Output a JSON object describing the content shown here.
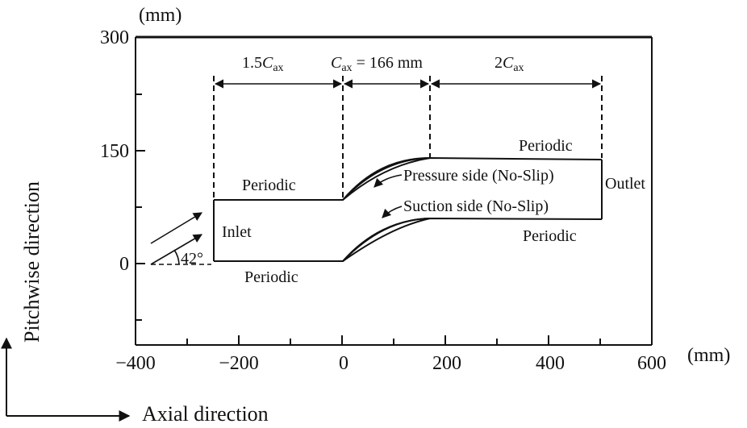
{
  "axes": {
    "x_unit": "(mm)",
    "y_unit": "(mm)",
    "x_ticks": [
      "−400",
      "−200",
      "0",
      "200",
      "400",
      "600"
    ],
    "y_ticks": [
      "300",
      "150",
      "0"
    ],
    "y_title": "Pitchwise direction",
    "x_title": "Axial direction"
  },
  "dims": {
    "inlet_len": {
      "num": "1.5",
      "sym": "C",
      "sub": "ax"
    },
    "chord": {
      "sym": "C",
      "sub": "ax",
      "rest": " = 166 mm"
    },
    "outlet_len": {
      "num": "2",
      "sym": "C",
      "sub": "ax"
    }
  },
  "labels": {
    "periodic_top_left": "Periodic",
    "periodic_top_right": "Periodic",
    "periodic_bottom_left": "Periodic",
    "periodic_bottom_right": "Periodic",
    "inlet": "Inlet",
    "outlet": "Outlet",
    "pressure_side": "Pressure side (No-Slip)",
    "suction_side": "Suction side (No-Slip)",
    "angle": "42°"
  },
  "colors": {
    "line": "#111111"
  }
}
